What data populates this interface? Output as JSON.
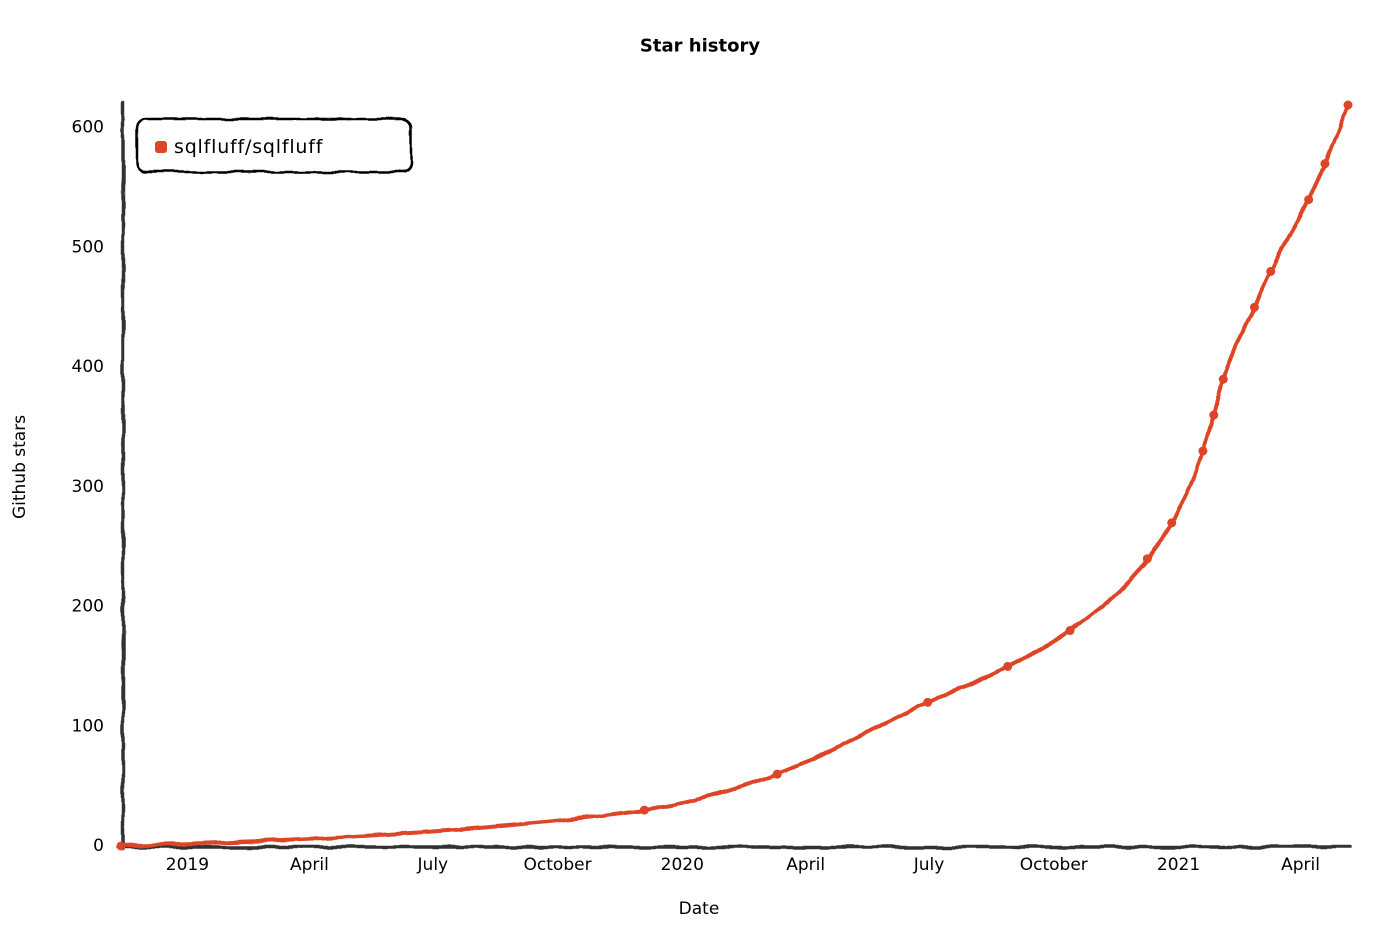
{
  "chart_data": {
    "type": "line",
    "title": "Star history",
    "xlabel": "Date",
    "ylabel": "Github stars",
    "x_scale": "time",
    "x": [
      "2018-11-13",
      "2019-12-04",
      "2020-03-11",
      "2020-06-30",
      "2020-08-28",
      "2020-10-13",
      "2020-12-09",
      "2020-12-27",
      "2021-01-19",
      "2021-01-27",
      "2021-02-03",
      "2021-02-26",
      "2021-03-10",
      "2021-04-07",
      "2021-04-19",
      "2021-05-06"
    ],
    "series": [
      {
        "name": "sqlfluff/sqlfluff",
        "color": "#dd4528",
        "values": [
          0,
          30,
          60,
          120,
          150,
          180,
          240,
          270,
          330,
          360,
          390,
          450,
          480,
          540,
          570,
          619
        ]
      }
    ],
    "xlim": [
      "2018-11-13",
      "2021-05-06"
    ],
    "ylim": [
      0,
      619
    ],
    "x_ticks": [
      {
        "date": "2019-01-01",
        "label": "2019"
      },
      {
        "date": "2019-04-01",
        "label": "April"
      },
      {
        "date": "2019-07-01",
        "label": "July"
      },
      {
        "date": "2019-10-01",
        "label": "October"
      },
      {
        "date": "2020-01-01",
        "label": "2020"
      },
      {
        "date": "2020-04-01",
        "label": "April"
      },
      {
        "date": "2020-07-01",
        "label": "July"
      },
      {
        "date": "2020-10-01",
        "label": "October"
      },
      {
        "date": "2021-01-01",
        "label": "2021"
      },
      {
        "date": "2021-04-01",
        "label": "April"
      }
    ],
    "y_ticks": [
      0,
      100,
      200,
      300,
      400,
      500,
      600
    ],
    "grid": false,
    "legend": "top-left",
    "axis_color": "#333333"
  }
}
